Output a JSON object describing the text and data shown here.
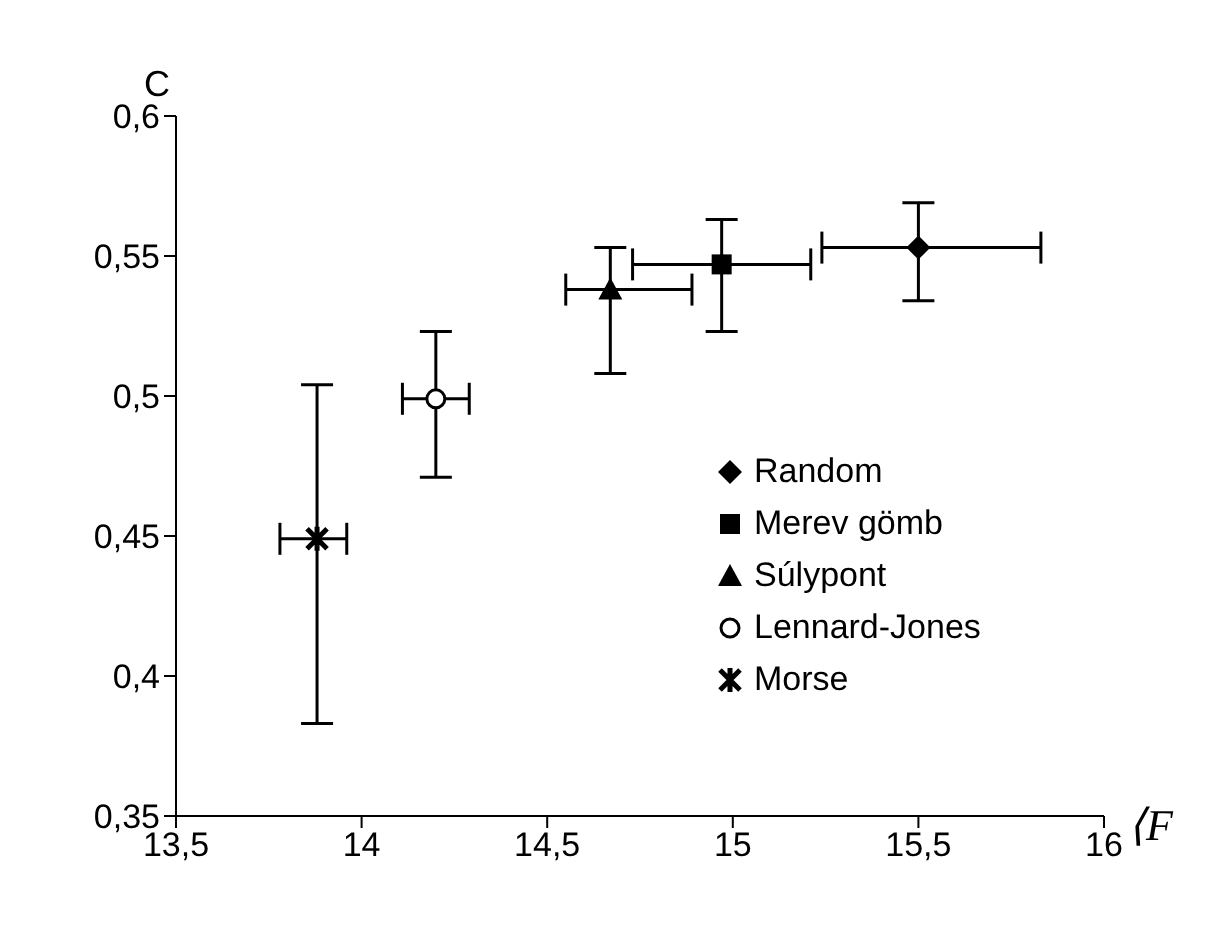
{
  "chart_data": {
    "type": "scatter",
    "xlabel": "⟨F",
    "ylabel": "C",
    "xlim": [
      13.5,
      16
    ],
    "xticks": [
      {
        "value": 13.5,
        "label": "13,5"
      },
      14,
      {
        "value": 14.5,
        "label": "14,5"
      },
      15,
      {
        "value": 15.5,
        "label": "15,5"
      },
      16
    ],
    "ylim": [
      0.35,
      0.6
    ],
    "yticks": [
      {
        "value": 0.35,
        "label": "0,35"
      },
      {
        "value": 0.4,
        "label": "0,4"
      },
      {
        "value": 0.45,
        "label": "0,45"
      },
      {
        "value": 0.5,
        "label": "0,5"
      },
      {
        "value": 0.55,
        "label": "0,55"
      },
      {
        "value": 0.6,
        "label": "0,6"
      }
    ],
    "grid": false,
    "legend": "right",
    "series": [
      {
        "name": "Random",
        "color": "#000000",
        "marker": "diamond",
        "x": [
          15.5
        ],
        "values": [
          0.553
        ],
        "errors": [
          [
            0.534,
            0.569
          ]
        ],
        "xerrors": [
          [
            15.24,
            15.83
          ]
        ]
      },
      {
        "name": "Merev gömb",
        "color": "#000000",
        "marker": "square",
        "x": [
          14.97
        ],
        "values": [
          0.547
        ],
        "errors": [
          [
            0.523,
            0.563
          ]
        ],
        "xerrors": [
          [
            14.73,
            15.21
          ]
        ]
      },
      {
        "name": "Súlypont",
        "color": "#000000",
        "marker": "triangle",
        "x": [
          14.67
        ],
        "values": [
          0.538
        ],
        "errors": [
          [
            0.508,
            0.553
          ]
        ],
        "xerrors": [
          [
            14.55,
            14.89
          ]
        ]
      },
      {
        "name": "Lennard-Jones",
        "color": "#000000",
        "marker": "circle",
        "x": [
          14.2
        ],
        "values": [
          0.499
        ],
        "errors": [
          [
            0.471,
            0.523
          ]
        ],
        "xerrors": [
          [
            14.11,
            14.29
          ]
        ]
      },
      {
        "name": "Morse",
        "color": "#000000",
        "marker": "cross",
        "x": [
          13.88
        ],
        "values": [
          0.449
        ],
        "errors": [
          [
            0.383,
            0.504
          ]
        ],
        "xerrors": [
          [
            13.78,
            13.96
          ]
        ]
      }
    ]
  }
}
